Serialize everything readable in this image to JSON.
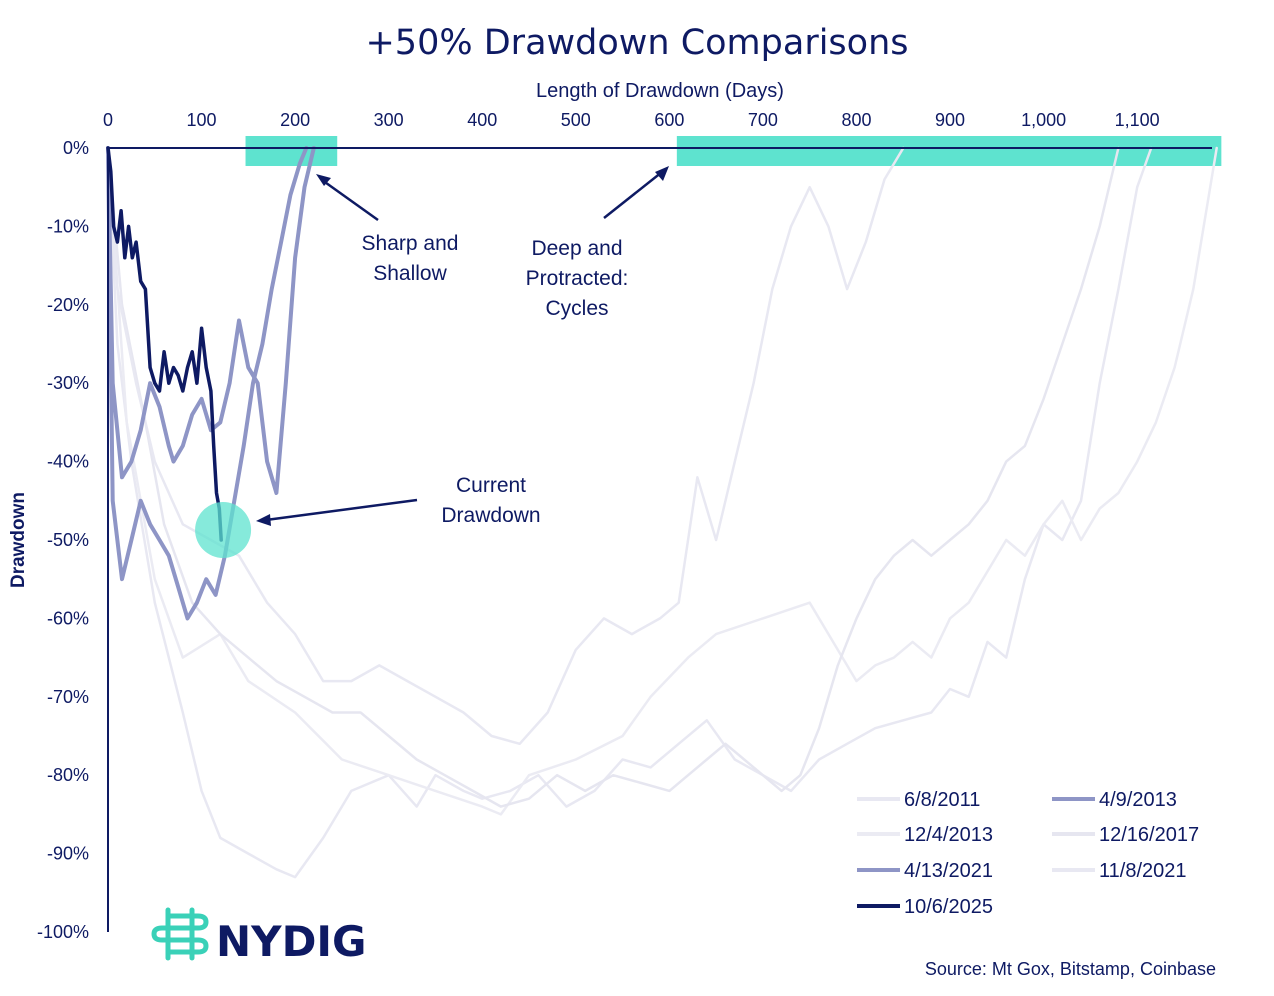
{
  "chart_data": {
    "type": "line",
    "title": "+50% Drawdown Comparisons",
    "xlabel": "Length of Drawdown (Days)",
    "ylabel": "Drawdown",
    "x_ticks": [
      0,
      100,
      200,
      300,
      400,
      500,
      600,
      700,
      800,
      900,
      1000,
      1100
    ],
    "x_tick_labels": [
      "0",
      "100",
      "200",
      "300",
      "400",
      "500",
      "600",
      "700",
      "800",
      "900",
      "1,000",
      "1,100"
    ],
    "y_ticks": [
      0,
      -10,
      -20,
      -30,
      -40,
      -50,
      -60,
      -70,
      -80,
      -90,
      -100
    ],
    "y_tick_labels": [
      "0%",
      "-10%",
      "-20%",
      "-30%",
      "-40%",
      "-50%",
      "-60%",
      "-70%",
      "-80%",
      "-90%",
      "-100%"
    ],
    "xlim": [
      0,
      1180
    ],
    "ylim": [
      -100,
      0
    ],
    "series": [
      {
        "name": "6/8/2011",
        "color": "#e8e8f2",
        "width": 2.5,
        "x": [
          0,
          10,
          25,
          50,
          80,
          100,
          120,
          150,
          180,
          200,
          230,
          260,
          300,
          330,
          350,
          380,
          400,
          430,
          460,
          490,
          520,
          550,
          580,
          610,
          640,
          670,
          700,
          730,
          760,
          790,
          820,
          850,
          880,
          900,
          920,
          940,
          960,
          980,
          1000,
          1020,
          1040,
          1060,
          1080,
          1100,
          1115
        ],
        "y": [
          0,
          -25,
          -40,
          -58,
          -72,
          -82,
          -88,
          -90,
          -92,
          -93,
          -88,
          -82,
          -80,
          -84,
          -80,
          -82,
          -83,
          -82,
          -80,
          -84,
          -82,
          -78,
          -79,
          -76,
          -73,
          -78,
          -80,
          -82,
          -78,
          -76,
          -74,
          -73,
          -72,
          -69,
          -70,
          -63,
          -65,
          -55,
          -48,
          -50,
          -45,
          -30,
          -18,
          -5,
          0
        ]
      },
      {
        "name": "4/9/2013",
        "color": "#8e95c6",
        "width": 4,
        "x": [
          0,
          5,
          15,
          25,
          35,
          45,
          55,
          65,
          75,
          85,
          95,
          105,
          115,
          125,
          135,
          145,
          155,
          165,
          175,
          185,
          195,
          205,
          212
        ],
        "y": [
          0,
          -45,
          -55,
          -50,
          -45,
          -48,
          -50,
          -52,
          -56,
          -60,
          -58,
          -55,
          -57,
          -52,
          -45,
          -38,
          -30,
          -25,
          -18,
          -12,
          -6,
          -2,
          0
        ]
      },
      {
        "name": "12/4/2013",
        "color": "#ebebf3",
        "width": 2.5,
        "x": [
          0,
          20,
          50,
          80,
          120,
          150,
          200,
          250,
          300,
          350,
          400,
          420,
          450,
          500,
          550,
          580,
          620,
          650,
          700,
          750,
          800,
          820,
          840,
          860,
          880,
          900,
          920,
          940,
          960,
          980,
          1000,
          1020,
          1040,
          1060,
          1080,
          1100,
          1120,
          1140,
          1160,
          1185
        ],
        "y": [
          0,
          -35,
          -55,
          -65,
          -62,
          -68,
          -72,
          -78,
          -80,
          -82,
          -84,
          -85,
          -80,
          -78,
          -75,
          -70,
          -65,
          -62,
          -60,
          -58,
          -68,
          -66,
          -65,
          -63,
          -65,
          -60,
          -58,
          -54,
          -50,
          -52,
          -48,
          -45,
          -50,
          -46,
          -44,
          -40,
          -35,
          -28,
          -18,
          0
        ]
      },
      {
        "name": "12/16/2017",
        "color": "#e6e6f0",
        "width": 2.5,
        "x": [
          0,
          15,
          40,
          60,
          90,
          120,
          150,
          180,
          210,
          240,
          270,
          300,
          330,
          360,
          390,
          420,
          450,
          480,
          510,
          540,
          570,
          600,
          620,
          640,
          660,
          680,
          700,
          720,
          740,
          760,
          780,
          800,
          820,
          840,
          860,
          880,
          900,
          920,
          940,
          960,
          980,
          1000,
          1020,
          1040,
          1060,
          1080
        ],
        "y": [
          0,
          -20,
          -35,
          -48,
          -58,
          -62,
          -65,
          -68,
          -70,
          -72,
          -72,
          -75,
          -78,
          -80,
          -82,
          -84,
          -83,
          -80,
          -82,
          -80,
          -81,
          -82,
          -80,
          -78,
          -76,
          -78,
          -80,
          -82,
          -80,
          -74,
          -66,
          -60,
          -55,
          -52,
          -50,
          -52,
          -50,
          -48,
          -45,
          -40,
          -38,
          -32,
          -25,
          -18,
          -10,
          0
        ]
      },
      {
        "name": "4/13/2021",
        "color": "#8e95c6",
        "width": 4,
        "x": [
          0,
          5,
          15,
          25,
          35,
          45,
          55,
          65,
          70,
          80,
          90,
          100,
          110,
          120,
          130,
          140,
          150,
          160,
          170,
          180,
          190,
          200,
          210,
          220
        ],
        "y": [
          0,
          -30,
          -42,
          -40,
          -36,
          -30,
          -33,
          -38,
          -40,
          -38,
          -34,
          -32,
          -36,
          -35,
          -30,
          -22,
          -28,
          -30,
          -40,
          -44,
          -30,
          -14,
          -5,
          0
        ]
      },
      {
        "name": "11/8/2021",
        "color": "#e8e8f2",
        "width": 2.5,
        "x": [
          0,
          10,
          30,
          50,
          80,
          110,
          140,
          170,
          200,
          230,
          260,
          290,
          320,
          350,
          380,
          410,
          440,
          470,
          500,
          530,
          560,
          590,
          610,
          630,
          650,
          670,
          690,
          710,
          730,
          750,
          770,
          790,
          810,
          830,
          850
        ],
        "y": [
          0,
          -18,
          -30,
          -40,
          -48,
          -50,
          -52,
          -58,
          -62,
          -68,
          -68,
          -66,
          -68,
          -70,
          -72,
          -75,
          -76,
          -72,
          -64,
          -60,
          -62,
          -60,
          -58,
          -42,
          -50,
          -40,
          -30,
          -18,
          -10,
          -5,
          -10,
          -18,
          -12,
          -4,
          0
        ]
      },
      {
        "name": "10/6/2025",
        "color": "#0e1a63",
        "width": 3.5,
        "x": [
          0,
          3,
          6,
          10,
          14,
          18,
          22,
          26,
          30,
          35,
          40,
          45,
          50,
          55,
          60,
          65,
          70,
          75,
          80,
          85,
          90,
          95,
          100,
          105,
          110,
          113,
          116,
          119,
          121
        ],
        "y": [
          0,
          -3,
          -10,
          -12,
          -8,
          -14,
          -10,
          -14,
          -12,
          -17,
          -18,
          -28,
          -30,
          -31,
          -26,
          -30,
          -28,
          -29,
          -31,
          -28,
          -26,
          -30,
          -23,
          -28,
          -31,
          -38,
          -44,
          -46,
          -50
        ]
      }
    ],
    "highlights": [
      {
        "x0": 147,
        "x1": 245,
        "y": 0
      },
      {
        "x0": 608,
        "x1": 1190,
        "y": 0
      },
      {
        "x": 123,
        "y": -50
      }
    ],
    "annotations": [
      {
        "line1": "Sharp and",
        "line2": "Shallow",
        "line3": ""
      },
      {
        "line1": "Deep and",
        "line2": "Protracted:",
        "line3": "Cycles"
      },
      {
        "line1": "Current",
        "line2": "Drawdown",
        "line3": ""
      }
    ],
    "legend": {
      "placement": "bottom-right",
      "entries": [
        "6/8/2011",
        "4/9/2013",
        "12/4/2013",
        "12/16/2017",
        "4/13/2021",
        "11/8/2021",
        "10/6/2025"
      ]
    },
    "source": "Source: Mt Gox, Bitstamp, Coinbase",
    "logo_text": "NYDIG",
    "highlight_color": "#5ee3cf",
    "axis_color": "#0e1a63"
  }
}
